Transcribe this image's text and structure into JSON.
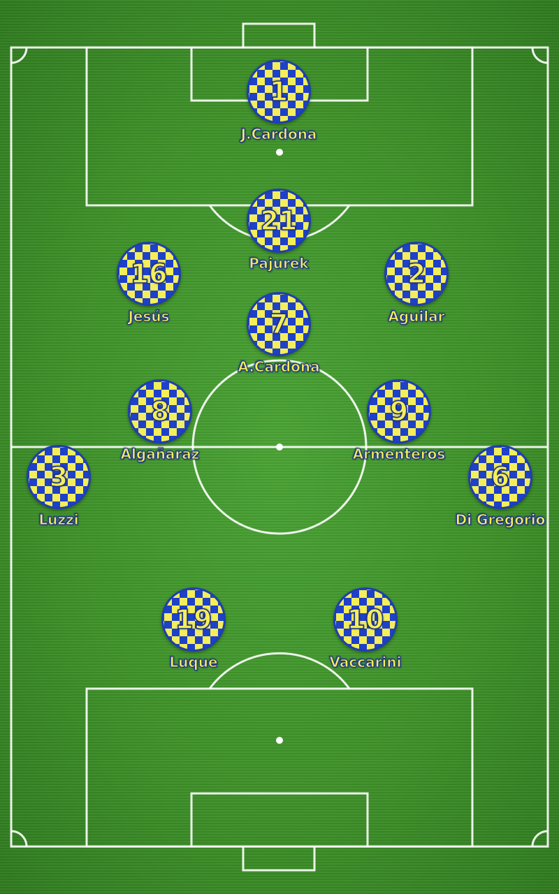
{
  "colors": {
    "badge_primary": "#1f40c8",
    "badge_secondary": "#f4ee5a",
    "pitch": "#3e9129",
    "lines": "#ffffff"
  },
  "players": [
    {
      "number": "1",
      "name": "J.Cardona"
    },
    {
      "number": "21",
      "name": "Pajurek"
    },
    {
      "number": "16",
      "name": "Jesús"
    },
    {
      "number": "2",
      "name": "Aguilar"
    },
    {
      "number": "7",
      "name": "A.Cardona"
    },
    {
      "number": "8",
      "name": "Algañaraz"
    },
    {
      "number": "9",
      "name": "Armenteros"
    },
    {
      "number": "3",
      "name": "Luzzi"
    },
    {
      "number": "6",
      "name": "Di Gregorio"
    },
    {
      "number": "19",
      "name": "Luque"
    },
    {
      "number": "10",
      "name": "Vaccarini"
    }
  ]
}
